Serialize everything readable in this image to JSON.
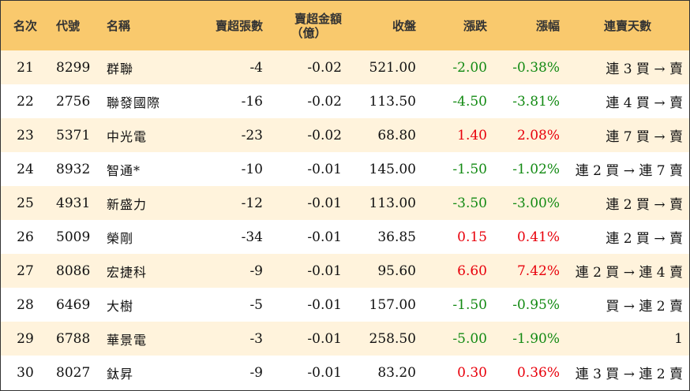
{
  "colors": {
    "header_bg": "#f9c96d",
    "row_alt_bg": "#fff3dc",
    "up": "#e8000b",
    "down": "#138a13"
  },
  "headers": {
    "rank": "名次",
    "code": "代號",
    "name": "名稱",
    "sell_lots": "賣超張數",
    "sell_amount_line1": "賣超金額",
    "sell_amount_line2": "（億）",
    "close": "收盤",
    "change": "漲跌",
    "pct": "漲幅",
    "streak": "連賣天數"
  },
  "rows": [
    {
      "rank": "21",
      "code": "8299",
      "name": "群聯",
      "sell_lots": "-4",
      "sell_amount": "-0.02",
      "close": "521.00",
      "change": "-2.00",
      "pct": "-0.38%",
      "streak": "連 3 買 → 賣",
      "dir": "down"
    },
    {
      "rank": "22",
      "code": "2756",
      "name": "聯發國際",
      "sell_lots": "-16",
      "sell_amount": "-0.02",
      "close": "113.50",
      "change": "-4.50",
      "pct": "-3.81%",
      "streak": "連 4 買 → 賣",
      "dir": "down"
    },
    {
      "rank": "23",
      "code": "5371",
      "name": "中光電",
      "sell_lots": "-23",
      "sell_amount": "-0.02",
      "close": "68.80",
      "change": "1.40",
      "pct": "2.08%",
      "streak": "連 7 買 → 賣",
      "dir": "up"
    },
    {
      "rank": "24",
      "code": "8932",
      "name": "智通*",
      "sell_lots": "-10",
      "sell_amount": "-0.01",
      "close": "145.00",
      "change": "-1.50",
      "pct": "-1.02%",
      "streak": "連 2 買 → 連 7 賣",
      "dir": "down"
    },
    {
      "rank": "25",
      "code": "4931",
      "name": "新盛力",
      "sell_lots": "-12",
      "sell_amount": "-0.01",
      "close": "113.00",
      "change": "-3.50",
      "pct": "-3.00%",
      "streak": "連 2 買 → 賣",
      "dir": "down"
    },
    {
      "rank": "26",
      "code": "5009",
      "name": "榮剛",
      "sell_lots": "-34",
      "sell_amount": "-0.01",
      "close": "36.85",
      "change": "0.15",
      "pct": "0.41%",
      "streak": "連 2 買 → 賣",
      "dir": "up"
    },
    {
      "rank": "27",
      "code": "8086",
      "name": "宏捷科",
      "sell_lots": "-9",
      "sell_amount": "-0.01",
      "close": "95.60",
      "change": "6.60",
      "pct": "7.42%",
      "streak": "連 2 買 → 連 4 賣",
      "dir": "up"
    },
    {
      "rank": "28",
      "code": "6469",
      "name": "大樹",
      "sell_lots": "-5",
      "sell_amount": "-0.01",
      "close": "157.00",
      "change": "-1.50",
      "pct": "-0.95%",
      "streak": "買 → 連 2 賣",
      "dir": "down"
    },
    {
      "rank": "29",
      "code": "6788",
      "name": "華景電",
      "sell_lots": "-3",
      "sell_amount": "-0.01",
      "close": "258.50",
      "change": "-5.00",
      "pct": "-1.90%",
      "streak": "1",
      "dir": "down"
    },
    {
      "rank": "30",
      "code": "8027",
      "name": "鈦昇",
      "sell_lots": "-9",
      "sell_amount": "-0.01",
      "close": "83.20",
      "change": "0.30",
      "pct": "0.36%",
      "streak": "連 3 買 → 連 2 賣",
      "dir": "up"
    }
  ]
}
